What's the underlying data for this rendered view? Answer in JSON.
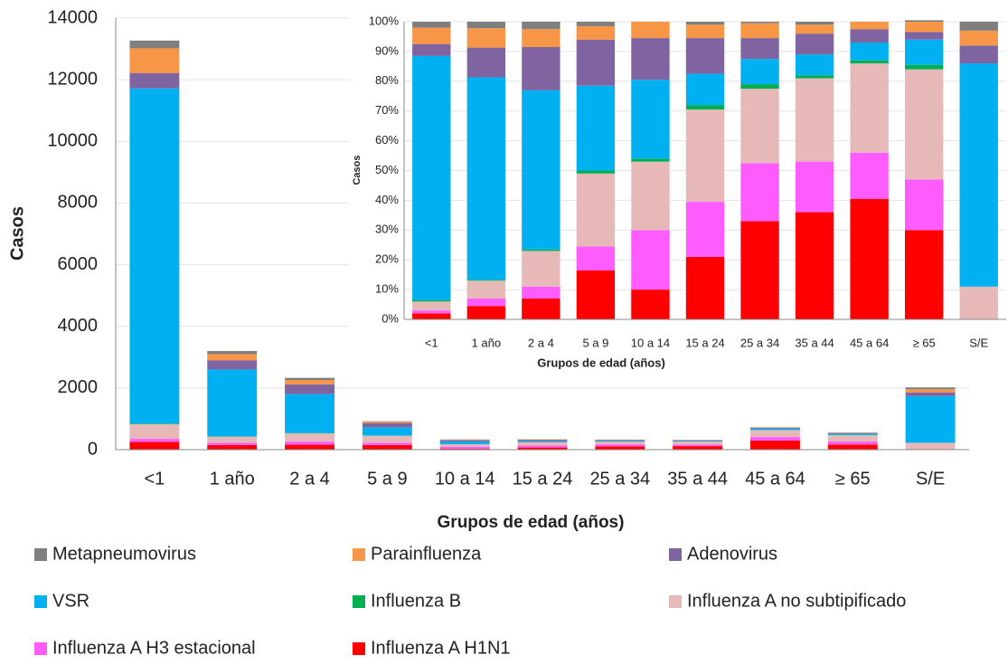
{
  "chart_data": [
    {
      "type": "bar",
      "stacked": true,
      "ylabel": "Casos",
      "xlabel": "Grupos de edad (años)",
      "categories": [
        "<1",
        "1 año",
        "2 a 4",
        "5 a 9",
        "10 a 14",
        "15 a 24",
        "25 a 34",
        "35 a 44",
        "45 a 64",
        "≥ 65",
        "S/E"
      ],
      "ylim": [
        0,
        14000
      ],
      "yticks": [
        0,
        2000,
        4000,
        6000,
        8000,
        10000,
        12000,
        14000
      ],
      "grid": true,
      "series": [
        {
          "name": "Metapneumovirus",
          "color": "#7f7f7f",
          "values": [
            250,
            100,
            70,
            12,
            2,
            3,
            2,
            3,
            0,
            3,
            61
          ]
        },
        {
          "name": "Parainfluenza",
          "color": "#f79646",
          "values": [
            800,
            200,
            140,
            45,
            18,
            17,
            15,
            10,
            18,
            17,
            101
          ]
        },
        {
          "name": "Adenovirus",
          "color": "#8064a2",
          "values": [
            500,
            300,
            320,
            140,
            46,
            41,
            23,
            22,
            33,
            14,
            121
          ]
        },
        {
          "name": "VSR",
          "color": "#00b0f0",
          "values": [
            10870,
            2170,
            1260,
            265,
            89,
            34,
            28,
            22,
            44,
            48,
            1515
          ]
        },
        {
          "name": "Influenza B",
          "color": "#00b050",
          "values": [
            20,
            10,
            10,
            8,
            3,
            7,
            5,
            3,
            7,
            8,
            0
          ]
        },
        {
          "name": "Influenza A no subtipificado",
          "color": "#e6b9b8",
          "values": [
            480,
            200,
            270,
            225,
            76,
            105,
            82,
            90,
            219,
            207,
            222
          ]
        },
        {
          "name": "Influenza A H3 estacional",
          "color": "#ff5cff",
          "values": [
            100,
            70,
            100,
            75,
            66,
            61,
            64,
            54,
            113,
            95,
            0
          ]
        },
        {
          "name": "Influenza A H1N1",
          "color": "#ff0000",
          "values": [
            250,
            150,
            160,
            150,
            33,
            71,
            109,
            115,
            296,
            168,
            0
          ]
        }
      ]
    },
    {
      "type": "bar",
      "stacked": true,
      "ylabel": "Casos",
      "xlabel": "Grupos de edad (años)",
      "categories": [
        "<1",
        "1 año",
        "2 a 4",
        "5 a 9",
        "10 a 14",
        "15 a 24",
        "25 a 34",
        "35 a 44",
        "45 a 64",
        "≥ 65",
        "S/E"
      ],
      "ylim": [
        0,
        100
      ],
      "yticks": [
        {
          "value": 0,
          "label": "0%"
        },
        {
          "value": 10,
          "label": "10%"
        },
        {
          "value": 20,
          "label": "20%"
        },
        {
          "value": 30,
          "label": "30%"
        },
        {
          "value": 40,
          "label": "40%"
        },
        {
          "value": 50,
          "label": "50%"
        },
        {
          "value": 60,
          "label": "60%"
        },
        {
          "value": 70,
          "label": "70%"
        },
        {
          "value": 80,
          "label": "80%"
        },
        {
          "value": 90,
          "label": "90%"
        },
        {
          "value": 100,
          "label": "100%"
        }
      ],
      "grid": true,
      "series": [
        {
          "color": "#7f7f7f",
          "values": [
            2,
            2.2,
            2.5,
            1.5,
            0,
            1,
            0.5,
            1,
            0,
            0.5,
            3
          ]
        },
        {
          "color": "#f79646",
          "values": [
            5.5,
            6.5,
            6,
            4.5,
            5.5,
            4.5,
            5,
            3,
            2.5,
            3.5,
            5
          ]
        },
        {
          "color": "#8064a2",
          "values": [
            4,
            10,
            14.5,
            15.5,
            14,
            12,
            7,
            7,
            4.5,
            2.5,
            6
          ]
        },
        {
          "color": "#00b0f0",
          "values": [
            82,
            68,
            53.5,
            28.5,
            26.5,
            10.5,
            8.5,
            7,
            6,
            8.5,
            75
          ]
        },
        {
          "color": "#00b050",
          "values": [
            0.5,
            0.3,
            0.5,
            1,
            1,
            1.5,
            1.5,
            1,
            1,
            1.5,
            0
          ]
        },
        {
          "color": "#e6b9b8",
          "values": [
            3,
            6,
            12,
            24.5,
            23,
            31,
            25,
            28,
            30,
            37,
            11
          ]
        },
        {
          "color": "#ff5cff",
          "values": [
            1,
            2.5,
            4,
            8,
            20,
            18.5,
            19.5,
            17,
            15.5,
            17,
            0
          ]
        },
        {
          "color": "#ff0000",
          "values": [
            2,
            4.5,
            7,
            16.5,
            10,
            21,
            33,
            36,
            40.5,
            30,
            0
          ]
        }
      ]
    }
  ]
}
